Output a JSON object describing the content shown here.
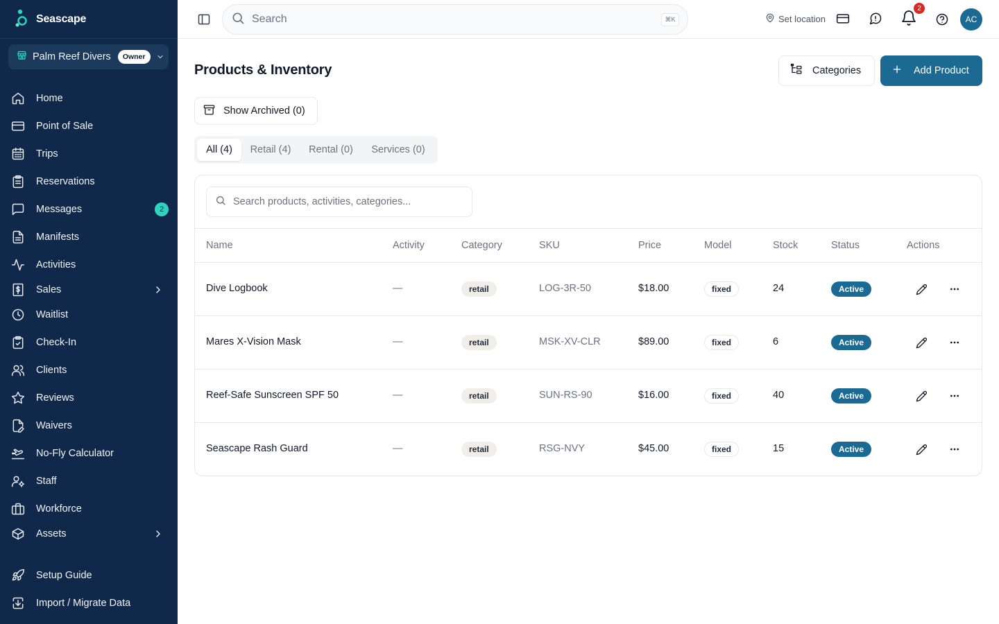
{
  "brand": {
    "name": "Seascape"
  },
  "org": {
    "name": "Palm Reef Divers",
    "role": "Owner"
  },
  "nav": {
    "items": [
      {
        "label": "Home",
        "icon": "home-icon"
      },
      {
        "label": "Point of Sale",
        "icon": "credit-card-icon"
      },
      {
        "label": "Trips",
        "icon": "calendar-icon"
      },
      {
        "label": "Reservations",
        "icon": "clipboard-icon"
      },
      {
        "label": "Messages",
        "icon": "message-square-icon",
        "badge": "2"
      },
      {
        "label": "Manifests",
        "icon": "file-text-icon"
      },
      {
        "label": "Activities",
        "icon": "activity-icon"
      },
      {
        "label": "Sales",
        "icon": "receipt-icon"
      },
      {
        "label": "Waitlist",
        "icon": "clock-icon"
      },
      {
        "label": "Check-In",
        "icon": "clipboard-check-icon"
      },
      {
        "label": "Clients",
        "icon": "users-icon"
      },
      {
        "label": "Reviews",
        "icon": "star-icon"
      },
      {
        "label": "Waivers",
        "icon": "file-signature-icon"
      },
      {
        "label": "No-Fly Calculator",
        "icon": "plane-icon"
      },
      {
        "label": "Staff",
        "icon": "user-cog-icon"
      },
      {
        "label": "Workforce",
        "icon": "briefcase-icon"
      },
      {
        "label": "Assets",
        "icon": "box-icon"
      },
      {
        "label": "Setup Guide",
        "icon": "rocket-icon"
      },
      {
        "label": "Import / Migrate Data",
        "icon": "import-icon"
      }
    ]
  },
  "header": {
    "search_placeholder": "Search",
    "shortcut": "⌘K",
    "set_location": "Set location",
    "notifications_count": "2",
    "avatar_initials": "AC"
  },
  "page": {
    "title": "Products & Inventory",
    "categories_label": "Categories",
    "add_product_label": "Add Product",
    "show_archived_label": "Show Archived (0)",
    "tabs": [
      "All (4)",
      "Retail (4)",
      "Rental (0)",
      "Services (0)"
    ],
    "table_search_placeholder": "Search products, activities, categories..."
  },
  "table": {
    "columns": [
      "Name",
      "Activity",
      "Category",
      "SKU",
      "Price",
      "Model",
      "Stock",
      "Status",
      "Actions"
    ],
    "rows": [
      {
        "name": "Dive Logbook",
        "activity": "—",
        "category": "retail",
        "sku": "LOG-3R-50",
        "price": "$18.00",
        "model": "fixed",
        "stock": "24",
        "status": "Active"
      },
      {
        "name": "Mares X-Vision Mask",
        "activity": "—",
        "category": "retail",
        "sku": "MSK-XV-CLR",
        "price": "$89.00",
        "model": "fixed",
        "stock": "6",
        "status": "Active"
      },
      {
        "name": "Reef-Safe Sunscreen SPF 50",
        "activity": "—",
        "category": "retail",
        "sku": "SUN-RS-90",
        "price": "$16.00",
        "model": "fixed",
        "stock": "40",
        "status": "Active"
      },
      {
        "name": "Seascape Rash Guard",
        "activity": "—",
        "category": "retail",
        "sku": "RSG-NVY",
        "price": "$45.00",
        "model": "fixed",
        "stock": "15",
        "status": "Active"
      }
    ]
  },
  "colors": {
    "sidebar_bg": "#10294a",
    "primary": "#1b6a93",
    "accent_teal": "#2dd4bf",
    "notification_red": "#dc2626"
  }
}
